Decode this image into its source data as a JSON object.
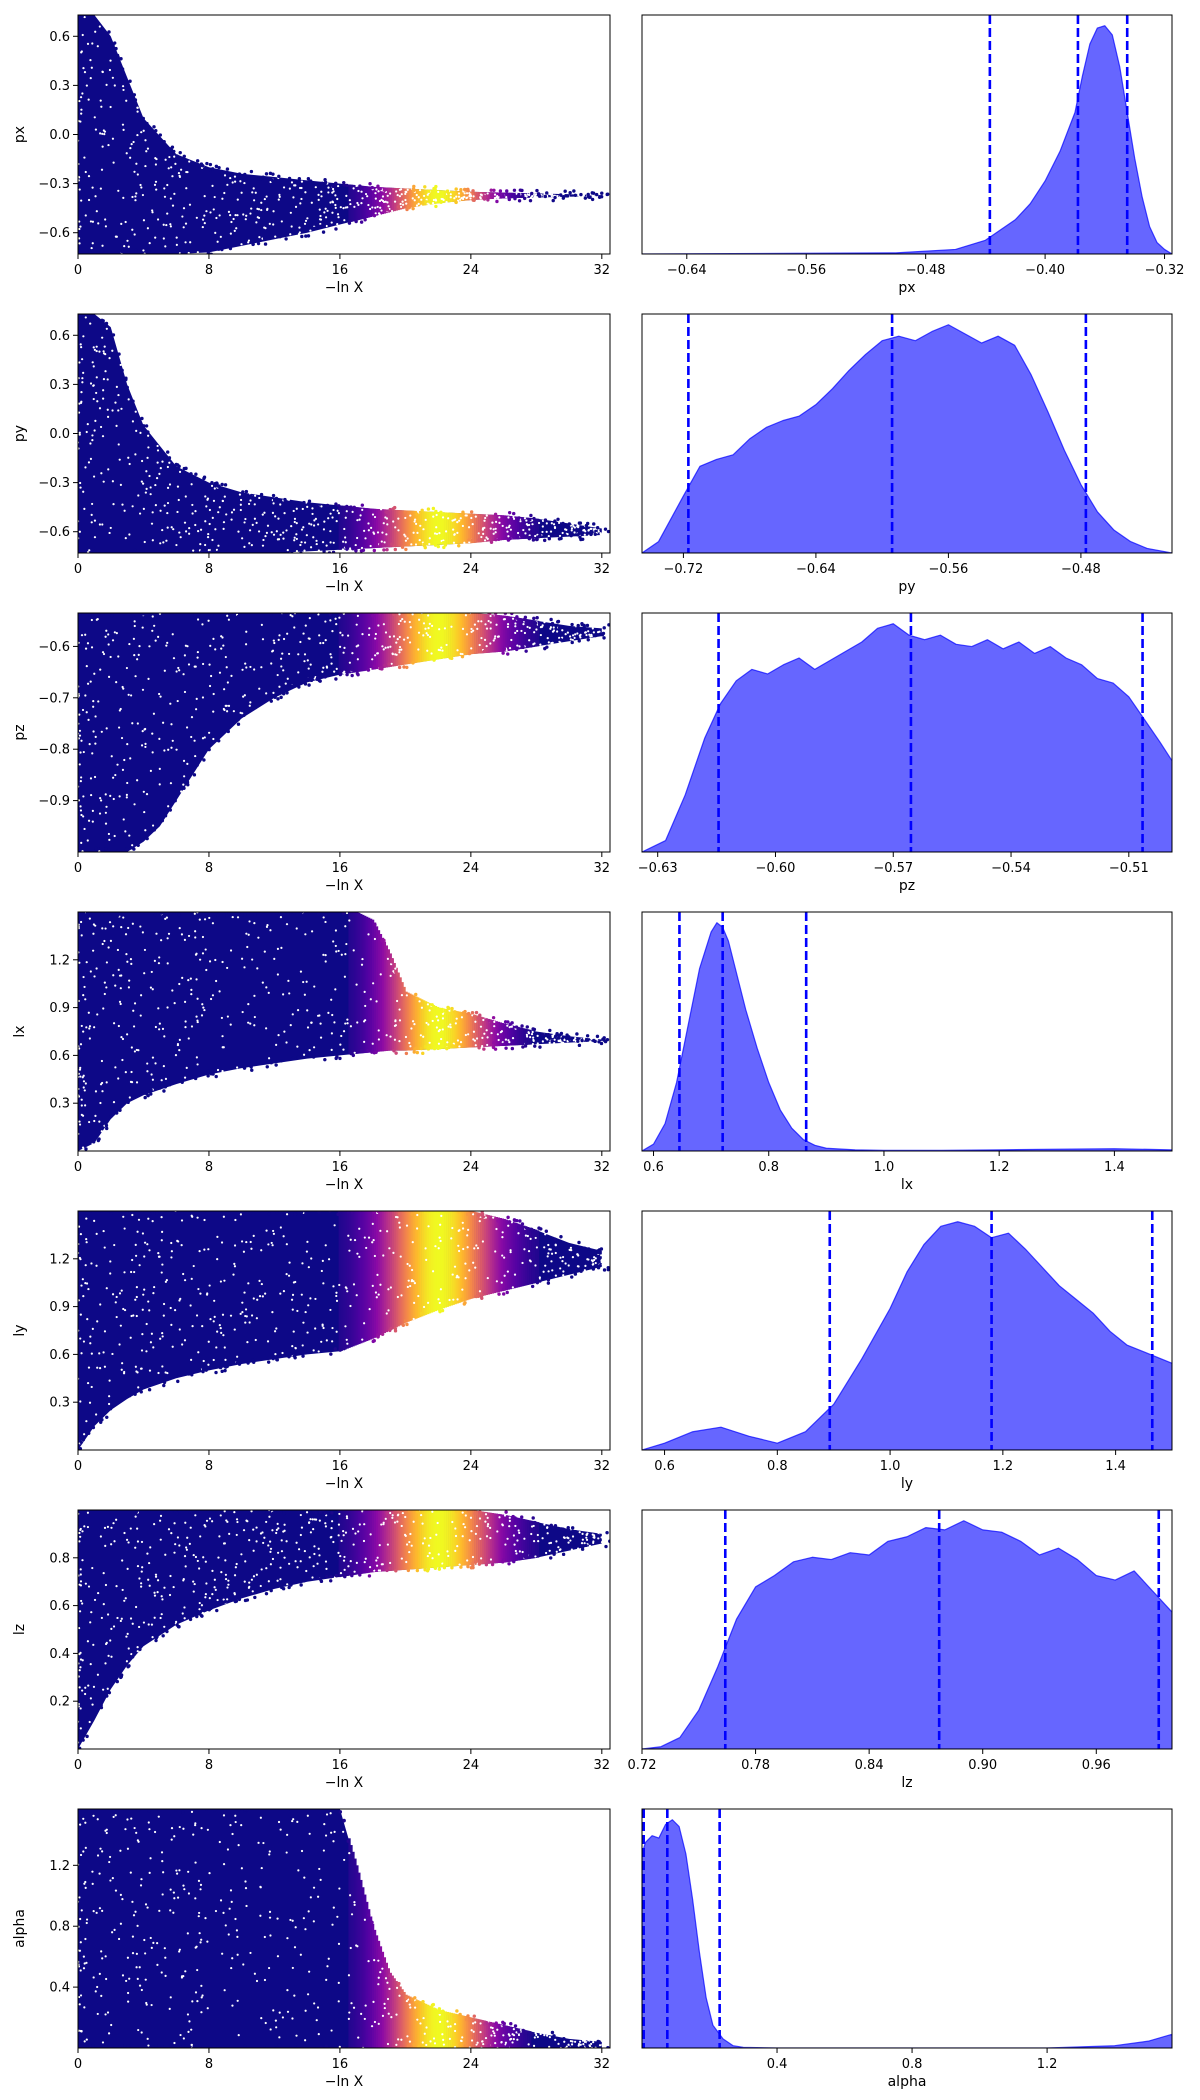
{
  "chart_data": [
    {
      "type": "scatter",
      "ylabel": "px",
      "xlabel": "−ln X",
      "xlim": [
        0,
        32.5
      ],
      "ylim": [
        -0.73,
        0.73
      ],
      "xticks": [
        0,
        8,
        16,
        24,
        32
      ],
      "yticks": [
        -0.6,
        -0.3,
        0.0,
        0.3,
        0.6
      ],
      "yticklabels": [
        "−0.6",
        "−0.3",
        "0.0",
        "0.3",
        "0.6"
      ],
      "colormap": "plasma",
      "color_peak_x": 22.0,
      "color_width": 2.2,
      "points_description": "scatter of samples vs -lnX, converging to px≈-0.37",
      "envelope": {
        "x": [
          0,
          1,
          2,
          3,
          4,
          6,
          8,
          10,
          12,
          14,
          16,
          18,
          20,
          22,
          24,
          26,
          28,
          30,
          32
        ],
        "y_upper": [
          0.73,
          0.73,
          0.6,
          0.35,
          0.1,
          -0.12,
          -0.2,
          -0.24,
          -0.26,
          -0.28,
          -0.3,
          -0.32,
          -0.33,
          -0.34,
          -0.35,
          -0.355,
          -0.36,
          -0.365,
          -0.37
        ],
        "y_lower": [
          -0.73,
          -0.73,
          -0.73,
          -0.73,
          -0.73,
          -0.73,
          -0.72,
          -0.68,
          -0.64,
          -0.6,
          -0.55,
          -0.5,
          -0.45,
          -0.42,
          -0.4,
          -0.39,
          -0.385,
          -0.38,
          -0.375
        ]
      }
    },
    {
      "type": "area",
      "xlabel": "px",
      "xlim": [
        -0.67,
        -0.315
      ],
      "xticks": [
        -0.64,
        -0.56,
        -0.48,
        -0.4,
        -0.32
      ],
      "xticklabels": [
        "−0.64",
        "−0.56",
        "−0.48",
        "−0.40",
        "−0.32"
      ],
      "x": [
        -0.67,
        -0.5,
        -0.46,
        -0.44,
        -0.42,
        -0.41,
        -0.4,
        -0.39,
        -0.38,
        -0.375,
        -0.37,
        -0.365,
        -0.36,
        -0.355,
        -0.35,
        -0.345,
        -0.34,
        -0.335,
        -0.33,
        -0.325,
        -0.32,
        -0.315
      ],
      "density": [
        0.0,
        0.005,
        0.02,
        0.06,
        0.15,
        0.22,
        0.32,
        0.45,
        0.62,
        0.78,
        0.92,
        0.99,
        1.0,
        0.96,
        0.82,
        0.62,
        0.42,
        0.25,
        0.12,
        0.05,
        0.02,
        0.0
      ],
      "quantile_lines": [
        -0.437,
        -0.378,
        -0.345
      ],
      "fill": "#0000ff",
      "line": "#0000ff"
    },
    {
      "type": "scatter",
      "ylabel": "py",
      "xlabel": "−ln X",
      "xlim": [
        0,
        32.5
      ],
      "ylim": [
        -0.73,
        0.73
      ],
      "xticks": [
        0,
        8,
        16,
        24,
        32
      ],
      "yticks": [
        -0.6,
        -0.3,
        0.0,
        0.3,
        0.6
      ],
      "yticklabels": [
        "−0.6",
        "−0.3",
        "0.0",
        "0.3",
        "0.6"
      ],
      "colormap": "plasma",
      "color_peak_x": 22.0,
      "color_width": 2.4,
      "envelope": {
        "x": [
          0,
          1,
          2,
          3,
          4,
          6,
          8,
          10,
          12,
          14,
          16,
          18,
          20,
          22,
          24,
          26,
          28,
          30,
          32
        ],
        "y_upper": [
          0.73,
          0.73,
          0.65,
          0.3,
          0.05,
          -0.2,
          -0.3,
          -0.36,
          -0.39,
          -0.42,
          -0.44,
          -0.46,
          -0.47,
          -0.48,
          -0.49,
          -0.5,
          -0.52,
          -0.55,
          -0.58
        ],
        "y_lower": [
          -0.73,
          -0.73,
          -0.73,
          -0.73,
          -0.73,
          -0.73,
          -0.73,
          -0.73,
          -0.73,
          -0.72,
          -0.71,
          -0.7,
          -0.69,
          -0.68,
          -0.67,
          -0.65,
          -0.64,
          -0.63,
          -0.62
        ]
      }
    },
    {
      "type": "area",
      "xlabel": "py",
      "xlim": [
        -0.745,
        -0.425
      ],
      "xticks": [
        -0.72,
        -0.64,
        -0.56,
        -0.48
      ],
      "xticklabels": [
        "−0.72",
        "−0.64",
        "−0.56",
        "−0.48"
      ],
      "x": [
        -0.745,
        -0.735,
        -0.72,
        -0.71,
        -0.7,
        -0.69,
        -0.68,
        -0.67,
        -0.66,
        -0.65,
        -0.64,
        -0.63,
        -0.62,
        -0.61,
        -0.6,
        -0.59,
        -0.58,
        -0.57,
        -0.56,
        -0.55,
        -0.54,
        -0.53,
        -0.52,
        -0.51,
        -0.5,
        -0.49,
        -0.48,
        -0.47,
        -0.46,
        -0.45,
        -0.44,
        -0.425
      ],
      "density": [
        0.0,
        0.05,
        0.25,
        0.38,
        0.41,
        0.43,
        0.5,
        0.55,
        0.58,
        0.6,
        0.65,
        0.72,
        0.8,
        0.87,
        0.93,
        0.95,
        0.93,
        0.97,
        1.0,
        0.96,
        0.92,
        0.95,
        0.91,
        0.78,
        0.62,
        0.45,
        0.3,
        0.18,
        0.1,
        0.05,
        0.02,
        0.0
      ],
      "quantile_lines": [
        -0.717,
        -0.594,
        -0.477
      ],
      "fill": "#0000ff",
      "line": "#0000ff"
    },
    {
      "type": "scatter",
      "ylabel": "pz",
      "xlabel": "−ln X",
      "xlim": [
        0,
        32.5
      ],
      "ylim": [
        -1.0,
        -0.535
      ],
      "xticks": [
        0,
        8,
        16,
        24,
        32
      ],
      "yticks": [
        -0.9,
        -0.8,
        -0.7,
        -0.6
      ],
      "yticklabels": [
        "−0.9",
        "−0.8",
        "−0.7",
        "−0.6"
      ],
      "colormap": "plasma",
      "color_peak_x": 22.0,
      "color_width": 2.4,
      "envelope": {
        "x": [
          0,
          1,
          2,
          3,
          4,
          5,
          6,
          8,
          10,
          12,
          14,
          16,
          18,
          20,
          22,
          24,
          26,
          28,
          30,
          32
        ],
        "y_upper": [
          -0.535,
          -0.535,
          -0.535,
          -0.535,
          -0.535,
          -0.535,
          -0.535,
          -0.535,
          -0.535,
          -0.535,
          -0.535,
          -0.535,
          -0.535,
          -0.535,
          -0.535,
          -0.535,
          -0.54,
          -0.55,
          -0.56,
          -0.565
        ],
        "y_lower": [
          -1.0,
          -1.0,
          -1.0,
          -1.0,
          -0.98,
          -0.95,
          -0.9,
          -0.8,
          -0.74,
          -0.7,
          -0.67,
          -0.655,
          -0.645,
          -0.635,
          -0.625,
          -0.615,
          -0.61,
          -0.6,
          -0.59,
          -0.58
        ]
      }
    },
    {
      "type": "area",
      "xlabel": "pz",
      "xlim": [
        -0.634,
        -0.499
      ],
      "xticks": [
        -0.63,
        -0.6,
        -0.57,
        -0.54,
        -0.51
      ],
      "xticklabels": [
        "−0.63",
        "−0.60",
        "−0.57",
        "−0.54",
        "−0.51"
      ],
      "x": [
        -0.634,
        -0.628,
        -0.623,
        -0.618,
        -0.614,
        -0.61,
        -0.606,
        -0.602,
        -0.598,
        -0.594,
        -0.59,
        -0.586,
        -0.582,
        -0.578,
        -0.574,
        -0.57,
        -0.566,
        -0.562,
        -0.558,
        -0.554,
        -0.55,
        -0.546,
        -0.542,
        -0.538,
        -0.534,
        -0.53,
        -0.526,
        -0.522,
        -0.518,
        -0.514,
        -0.51,
        -0.506,
        -0.502,
        -0.499
      ],
      "density": [
        0.0,
        0.05,
        0.25,
        0.5,
        0.65,
        0.75,
        0.8,
        0.78,
        0.82,
        0.85,
        0.8,
        0.84,
        0.88,
        0.92,
        0.98,
        1.0,
        0.95,
        0.93,
        0.95,
        0.91,
        0.9,
        0.93,
        0.89,
        0.92,
        0.87,
        0.9,
        0.85,
        0.82,
        0.76,
        0.74,
        0.68,
        0.58,
        0.48,
        0.4
      ],
      "quantile_lines": [
        -0.6145,
        -0.5655,
        -0.5065
      ],
      "fill": "#0000ff",
      "line": "#0000ff"
    },
    {
      "type": "scatter",
      "ylabel": "lx",
      "xlabel": "−ln X",
      "xlim": [
        0,
        32.5
      ],
      "ylim": [
        0.0,
        1.5
      ],
      "xticks": [
        0,
        8,
        16,
        24,
        32
      ],
      "yticks": [
        0.3,
        0.6,
        0.9,
        1.2
      ],
      "yticklabels": [
        "0.3",
        "0.6",
        "0.9",
        "1.2"
      ],
      "colormap": "plasma",
      "color_peak_x": 22.0,
      "color_width": 2.2,
      "envelope": {
        "x": [
          0,
          1,
          2,
          3,
          4,
          6,
          8,
          10,
          12,
          14,
          16,
          17,
          18,
          19,
          20,
          22,
          24,
          26,
          28,
          30,
          32
        ],
        "y_upper": [
          1.5,
          1.5,
          1.5,
          1.5,
          1.5,
          1.5,
          1.5,
          1.5,
          1.5,
          1.5,
          1.5,
          1.5,
          1.45,
          1.25,
          1.0,
          0.9,
          0.86,
          0.8,
          0.75,
          0.72,
          0.7
        ],
        "y_lower": [
          0.0,
          0.05,
          0.2,
          0.3,
          0.35,
          0.42,
          0.48,
          0.52,
          0.55,
          0.58,
          0.6,
          0.61,
          0.62,
          0.63,
          0.63,
          0.64,
          0.65,
          0.66,
          0.67,
          0.68,
          0.69
        ]
      }
    },
    {
      "type": "area",
      "xlabel": "lx",
      "xlim": [
        0.58,
        1.5
      ],
      "xticks": [
        0.6,
        0.8,
        1.0,
        1.2,
        1.4
      ],
      "xticklabels": [
        "0.6",
        "0.8",
        "1.0",
        "1.2",
        "1.4"
      ],
      "x": [
        0.58,
        0.6,
        0.62,
        0.64,
        0.66,
        0.68,
        0.7,
        0.71,
        0.72,
        0.73,
        0.74,
        0.76,
        0.78,
        0.8,
        0.82,
        0.84,
        0.86,
        0.88,
        0.9,
        0.95,
        1.0,
        1.1,
        1.2,
        1.3,
        1.4,
        1.5
      ],
      "density": [
        0.0,
        0.03,
        0.12,
        0.3,
        0.55,
        0.8,
        0.96,
        1.0,
        0.98,
        0.92,
        0.82,
        0.62,
        0.45,
        0.3,
        0.18,
        0.1,
        0.05,
        0.025,
        0.012,
        0.005,
        0.003,
        0.003,
        0.005,
        0.008,
        0.01,
        0.005
      ],
      "quantile_lines": [
        0.645,
        0.72,
        0.865
      ],
      "fill": "#0000ff",
      "line": "#0000ff"
    },
    {
      "type": "scatter",
      "ylabel": "ly",
      "xlabel": "−ln X",
      "xlim": [
        0,
        32.5
      ],
      "ylim": [
        0.0,
        1.5
      ],
      "xticks": [
        0,
        8,
        16,
        24,
        32
      ],
      "yticks": [
        0.3,
        0.6,
        0.9,
        1.2
      ],
      "yticklabels": [
        "0.3",
        "0.6",
        "0.9",
        "1.2"
      ],
      "colormap": "plasma",
      "color_peak_x": 22.0,
      "color_width": 2.4,
      "envelope": {
        "x": [
          0,
          1,
          2,
          3,
          4,
          6,
          8,
          10,
          12,
          14,
          16,
          18,
          20,
          22,
          24,
          26,
          28,
          30,
          32
        ],
        "y_upper": [
          1.5,
          1.5,
          1.5,
          1.5,
          1.5,
          1.5,
          1.5,
          1.5,
          1.5,
          1.5,
          1.5,
          1.5,
          1.5,
          1.5,
          1.5,
          1.45,
          1.38,
          1.3,
          1.25
        ],
        "y_lower": [
          0.0,
          0.15,
          0.25,
          0.32,
          0.38,
          0.45,
          0.5,
          0.54,
          0.57,
          0.6,
          0.62,
          0.7,
          0.8,
          0.88,
          0.95,
          1.0,
          1.05,
          1.1,
          1.15
        ]
      }
    },
    {
      "type": "area",
      "xlabel": "ly",
      "xlim": [
        0.56,
        1.5
      ],
      "xticks": [
        0.6,
        0.8,
        1.0,
        1.2,
        1.4
      ],
      "xticklabels": [
        "0.6",
        "0.8",
        "1.0",
        "1.2",
        "1.4"
      ],
      "x": [
        0.56,
        0.6,
        0.65,
        0.7,
        0.75,
        0.8,
        0.85,
        0.9,
        0.95,
        1.0,
        1.03,
        1.06,
        1.09,
        1.12,
        1.15,
        1.18,
        1.21,
        1.24,
        1.27,
        1.3,
        1.33,
        1.36,
        1.39,
        1.42,
        1.45,
        1.5
      ],
      "density": [
        0.0,
        0.03,
        0.08,
        0.1,
        0.06,
        0.03,
        0.08,
        0.2,
        0.4,
        0.62,
        0.78,
        0.9,
        0.98,
        1.0,
        0.98,
        0.93,
        0.95,
        0.88,
        0.8,
        0.72,
        0.66,
        0.6,
        0.52,
        0.46,
        0.43,
        0.38
      ],
      "quantile_lines": [
        0.893,
        1.18,
        1.465
      ],
      "fill": "#0000ff",
      "line": "#0000ff"
    },
    {
      "type": "scatter",
      "ylabel": "lz",
      "xlabel": "−ln X",
      "xlim": [
        0,
        32.5
      ],
      "ylim": [
        0.0,
        1.0
      ],
      "xticks": [
        0,
        8,
        16,
        24,
        32
      ],
      "yticks": [
        0.2,
        0.4,
        0.6,
        0.8
      ],
      "yticklabels": [
        "0.2",
        "0.4",
        "0.6",
        "0.8"
      ],
      "colormap": "plasma",
      "color_peak_x": 22.0,
      "color_width": 2.4,
      "envelope": {
        "x": [
          0,
          1,
          2,
          3,
          4,
          6,
          8,
          10,
          12,
          14,
          16,
          18,
          20,
          22,
          24,
          26,
          28,
          30,
          32
        ],
        "y_upper": [
          1.0,
          1.0,
          1.0,
          1.0,
          1.0,
          1.0,
          1.0,
          1.0,
          1.0,
          1.0,
          1.0,
          1.0,
          1.0,
          1.0,
          1.0,
          0.98,
          0.95,
          0.92,
          0.9
        ],
        "y_lower": [
          0.0,
          0.12,
          0.25,
          0.35,
          0.43,
          0.52,
          0.58,
          0.63,
          0.67,
          0.7,
          0.72,
          0.74,
          0.75,
          0.76,
          0.77,
          0.78,
          0.8,
          0.83,
          0.86
        ]
      }
    },
    {
      "type": "area",
      "xlabel": "lz",
      "xlim": [
        0.72,
        1.0
      ],
      "xticks": [
        0.72,
        0.78,
        0.84,
        0.9,
        0.96
      ],
      "xticklabels": [
        "0.72",
        "0.78",
        "0.84",
        "0.90",
        "0.96"
      ],
      "x": [
        0.72,
        0.73,
        0.74,
        0.75,
        0.76,
        0.77,
        0.78,
        0.79,
        0.8,
        0.81,
        0.82,
        0.83,
        0.84,
        0.85,
        0.86,
        0.87,
        0.88,
        0.89,
        0.9,
        0.91,
        0.92,
        0.93,
        0.94,
        0.95,
        0.96,
        0.97,
        0.98,
        0.99,
        1.0
      ],
      "density": [
        0.0,
        0.01,
        0.05,
        0.17,
        0.36,
        0.57,
        0.71,
        0.76,
        0.82,
        0.84,
        0.83,
        0.86,
        0.85,
        0.91,
        0.93,
        0.97,
        0.96,
        1.0,
        0.96,
        0.95,
        0.91,
        0.85,
        0.88,
        0.83,
        0.76,
        0.74,
        0.78,
        0.69,
        0.6
      ],
      "quantile_lines": [
        0.764,
        0.877,
        0.993
      ],
      "fill": "#0000ff",
      "line": "#0000ff"
    },
    {
      "type": "scatter",
      "ylabel": "alpha",
      "xlabel": "−ln X",
      "xlim": [
        0,
        32.5
      ],
      "ylim": [
        0.0,
        1.57
      ],
      "xticks": [
        0,
        8,
        16,
        24,
        32
      ],
      "yticks": [
        0.4,
        0.8,
        1.2
      ],
      "yticklabels": [
        "0.4",
        "0.8",
        "1.2"
      ],
      "colormap": "plasma",
      "color_peak_x": 22.0,
      "color_width": 2.2,
      "envelope": {
        "x": [
          0,
          2,
          4,
          6,
          8,
          10,
          12,
          14,
          16,
          17,
          18,
          19,
          20,
          22,
          24,
          26,
          28,
          30,
          32
        ],
        "y_upper": [
          1.57,
          1.57,
          1.57,
          1.57,
          1.57,
          1.57,
          1.57,
          1.57,
          1.57,
          1.2,
          0.8,
          0.5,
          0.35,
          0.25,
          0.2,
          0.15,
          0.1,
          0.06,
          0.04
        ],
        "y_lower": [
          0.0,
          0.0,
          0.0,
          0.0,
          0.0,
          0.0,
          0.0,
          0.0,
          0.0,
          0.0,
          0.0,
          0.0,
          0.0,
          0.0,
          0.0,
          0.0,
          0.0,
          0.0,
          0.0
        ]
      }
    },
    {
      "type": "area",
      "xlabel": "alpha",
      "xlim": [
        0.0,
        1.57
      ],
      "xticks": [
        0.4,
        0.8,
        1.2
      ],
      "xticklabels": [
        "0.4",
        "0.8",
        "1.2"
      ],
      "x": [
        0.0,
        0.01,
        0.03,
        0.05,
        0.07,
        0.09,
        0.11,
        0.13,
        0.15,
        0.17,
        0.19,
        0.21,
        0.24,
        0.27,
        0.3,
        0.4,
        0.8,
        1.2,
        1.4,
        1.5,
        1.57
      ],
      "density": [
        0.85,
        0.9,
        0.93,
        0.92,
        0.98,
        1.0,
        0.97,
        0.85,
        0.65,
        0.42,
        0.22,
        0.1,
        0.04,
        0.01,
        0.003,
        0.0,
        0.0,
        0.0,
        0.01,
        0.03,
        0.06
      ],
      "quantile_lines": [
        0.005,
        0.075,
        0.23
      ],
      "fill": "#0000ff",
      "line": "#0000ff"
    }
  ]
}
